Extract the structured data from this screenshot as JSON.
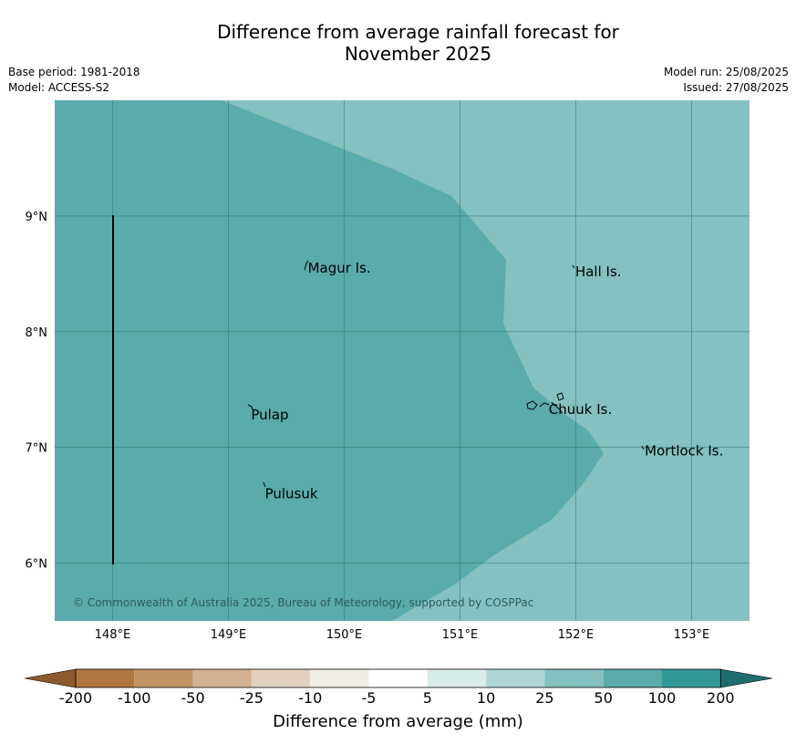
{
  "title": {
    "line1": "Difference from average rainfall forecast for",
    "line2": "November 2025"
  },
  "meta": {
    "base_period": "Base period: 1981-2018",
    "model": "Model: ACCESS-S2",
    "model_run": "Model run: 25/08/2025",
    "issued": "Issued: 27/08/2025"
  },
  "map": {
    "lon_range": [
      147.5,
      153.5
    ],
    "lat_range": [
      5.5,
      10.0
    ],
    "lon_ticks": [
      "148°E",
      "149°E",
      "150°E",
      "151°E",
      "152°E",
      "153°E"
    ],
    "lat_ticks": [
      "9°N",
      "8°N",
      "7°N",
      "6°N"
    ],
    "places": [
      {
        "name": "Magur Is.",
        "lon": 149.67,
        "lat": 8.55
      },
      {
        "name": "Hall Is.",
        "lon": 151.98,
        "lat": 8.52
      },
      {
        "name": "Pulap",
        "lon": 149.18,
        "lat": 7.28
      },
      {
        "name": "Chuuk Is.",
        "lon": 151.75,
        "lat": 7.33
      },
      {
        "name": "Mortlock Is.",
        "lon": 152.58,
        "lat": 6.97
      },
      {
        "name": "Pulusuk",
        "lon": 149.3,
        "lat": 6.6
      }
    ],
    "zones": [
      {
        "category": "50 to 100",
        "color": "#5aabab"
      },
      {
        "category": "25 to 50",
        "color": "#84c1c0"
      }
    ],
    "copyright": "© Commonwealth of Australia 2025, Bureau of Meteorology, supported by COSPPac"
  },
  "colorbar": {
    "ticks": [
      "-200",
      "-100",
      "-50",
      "-25",
      "-10",
      "-5",
      "5",
      "10",
      "25",
      "50",
      "100",
      "200"
    ],
    "colors": [
      "#b07640",
      "#c19468",
      "#d2b293",
      "#e3d1bf",
      "#f0ede6",
      "#ffffff",
      "#d8ecea",
      "#afd6d5",
      "#84c1c0",
      "#5aabab",
      "#339999"
    ],
    "under_color": "#8c5a2c",
    "over_color": "#1f6e6e",
    "label": "Difference from average (mm)"
  }
}
